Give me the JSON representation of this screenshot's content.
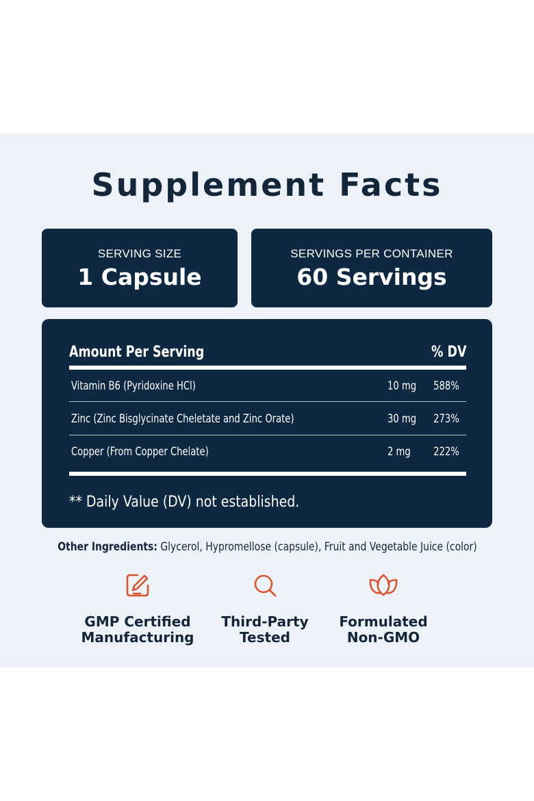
{
  "title": "Supplement Facts",
  "serving_size": {
    "label": "SERVING SIZE",
    "value": "1 Capsule"
  },
  "servings_per_container": {
    "label": "SERVINGS PER CONTAINER",
    "value": "60 Servings"
  },
  "facts_table": {
    "header_left": "Amount Per Serving",
    "header_right": "% DV",
    "rows": [
      {
        "name": "Vitamin B6 (Pyridoxine HCl)",
        "amount": "10 mg",
        "dv": "588%"
      },
      {
        "name": "Zinc (Zinc Bisglycinate Cheletate and Zinc Orate)",
        "amount": "30 mg",
        "dv": "273%"
      },
      {
        "name": "Copper (From Copper Chelate)",
        "amount": "2 mg",
        "dv": "222%"
      }
    ],
    "footnote": "** Daily Value (DV) not established."
  },
  "other_ingredients": {
    "label": "Other Ingredients:",
    "text": "Glycerol, Hypromellose (capsule), Fruit and Vegetable Juice (color)"
  },
  "badges": [
    {
      "icon": "edit-icon",
      "line1": "GMP Certified",
      "line2": "Manufacturing"
    },
    {
      "icon": "search-icon",
      "line1": "Third-Party",
      "line2": "Tested"
    },
    {
      "icon": "leaf-icon",
      "line1": "Formulated",
      "line2": "Non-GMO"
    }
  ],
  "colors": {
    "navy": "#0d2840",
    "accent": "#d9542b",
    "background": "#edf2f8"
  }
}
